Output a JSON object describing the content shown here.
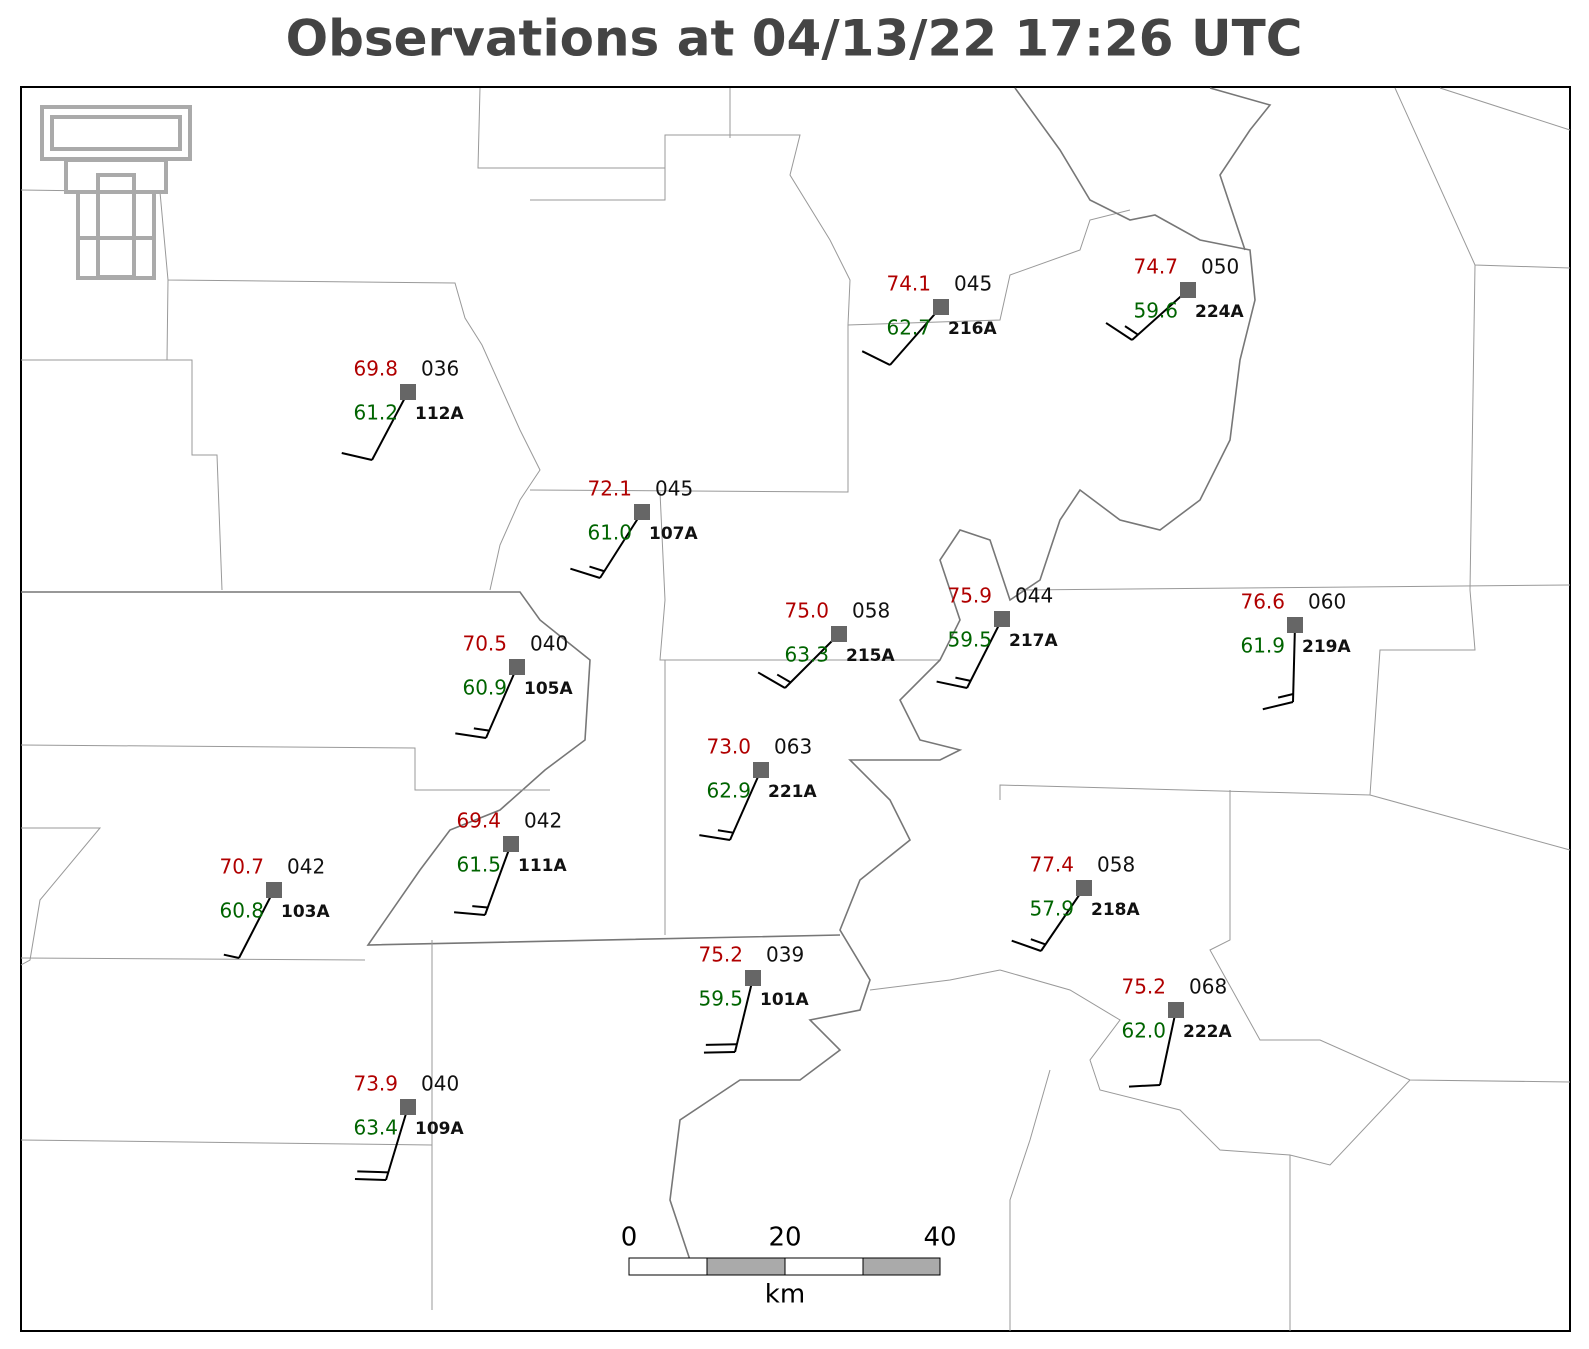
{
  "title": "Observations at 04/13/22 17:26 UTC",
  "stations": [
    {
      "id": "112A",
      "temperature": "69.8",
      "dewpoint": "61.2",
      "pressure": "036"
    },
    {
      "id": "107A",
      "temperature": "72.1",
      "dewpoint": "61.0",
      "pressure": "045"
    },
    {
      "id": "216A",
      "temperature": "74.1",
      "dewpoint": "62.7",
      "pressure": "045"
    },
    {
      "id": "224A",
      "temperature": "74.7",
      "dewpoint": "59.6",
      "pressure": "050"
    },
    {
      "id": "215A",
      "temperature": "75.0",
      "dewpoint": "63.3",
      "pressure": "058"
    },
    {
      "id": "217A",
      "temperature": "75.9",
      "dewpoint": "59.5",
      "pressure": "044"
    },
    {
      "id": "219A",
      "temperature": "76.6",
      "dewpoint": "61.9",
      "pressure": "060"
    },
    {
      "id": "105A",
      "temperature": "70.5",
      "dewpoint": "60.9",
      "pressure": "040"
    },
    {
      "id": "221A",
      "temperature": "73.0",
      "dewpoint": "62.9",
      "pressure": "063"
    },
    {
      "id": "111A",
      "temperature": "69.4",
      "dewpoint": "61.5",
      "pressure": "042"
    },
    {
      "id": "103A",
      "temperature": "70.7",
      "dewpoint": "60.8",
      "pressure": "042"
    },
    {
      "id": "218A",
      "temperature": "77.4",
      "dewpoint": "57.9",
      "pressure": "058"
    },
    {
      "id": "101A",
      "temperature": "75.2",
      "dewpoint": "59.5",
      "pressure": "039"
    },
    {
      "id": "222A",
      "temperature": "75.2",
      "dewpoint": "62.0",
      "pressure": "068"
    },
    {
      "id": "109A",
      "temperature": "73.9",
      "dewpoint": "63.4",
      "pressure": "040"
    }
  ],
  "scale_bar": {
    "ticks": [
      "0",
      "20",
      "40"
    ],
    "unit": "km"
  }
}
